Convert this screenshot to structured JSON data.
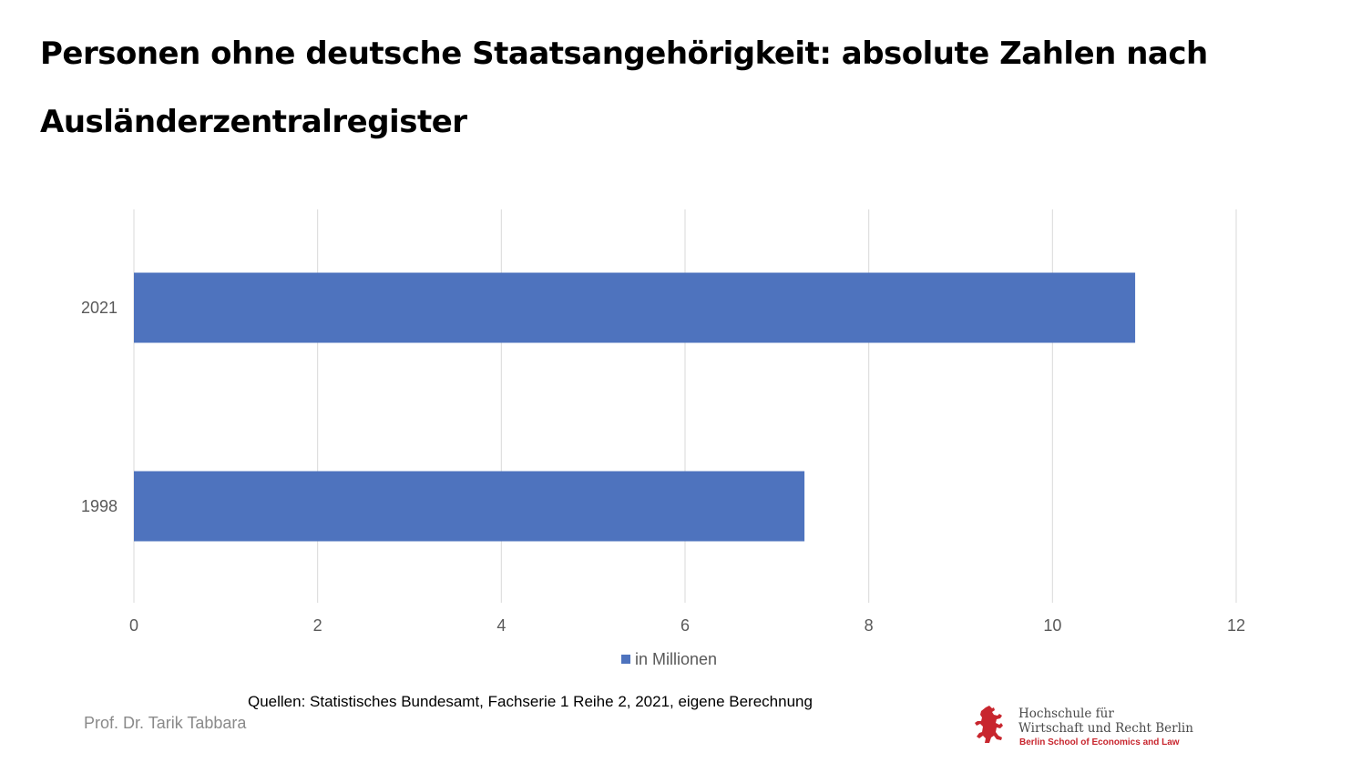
{
  "slide": {
    "title": "Personen ohne deutsche Staatsangehörigkeit: absolute Zahlen nach Ausländerzentralregister",
    "source": "Quellen: Statistisches Bundesamt, Fachserie 1 Reihe 2, 2021, eigene Berechnung",
    "author": "Prof. Dr. Tarik Tabbara"
  },
  "logo": {
    "line1": "Hochschule für",
    "line2": "Wirtschaft und Recht Berlin",
    "line3": "Berlin School of Economics and Law"
  },
  "colors": {
    "bar": "#4e73be",
    "grid": "#d9d9d9",
    "tick_text": "#595959",
    "logo_red": "#c8262e"
  },
  "chart_data": {
    "type": "bar",
    "orientation": "horizontal",
    "categories": [
      "2021",
      "1998"
    ],
    "series": [
      {
        "name": "in Millionen",
        "values": [
          10.9,
          7.3
        ]
      }
    ],
    "xlim": [
      0,
      12
    ],
    "xticks": [
      0,
      2,
      4,
      6,
      8,
      10,
      12
    ],
    "grid": true,
    "legend_position": "bottom"
  }
}
